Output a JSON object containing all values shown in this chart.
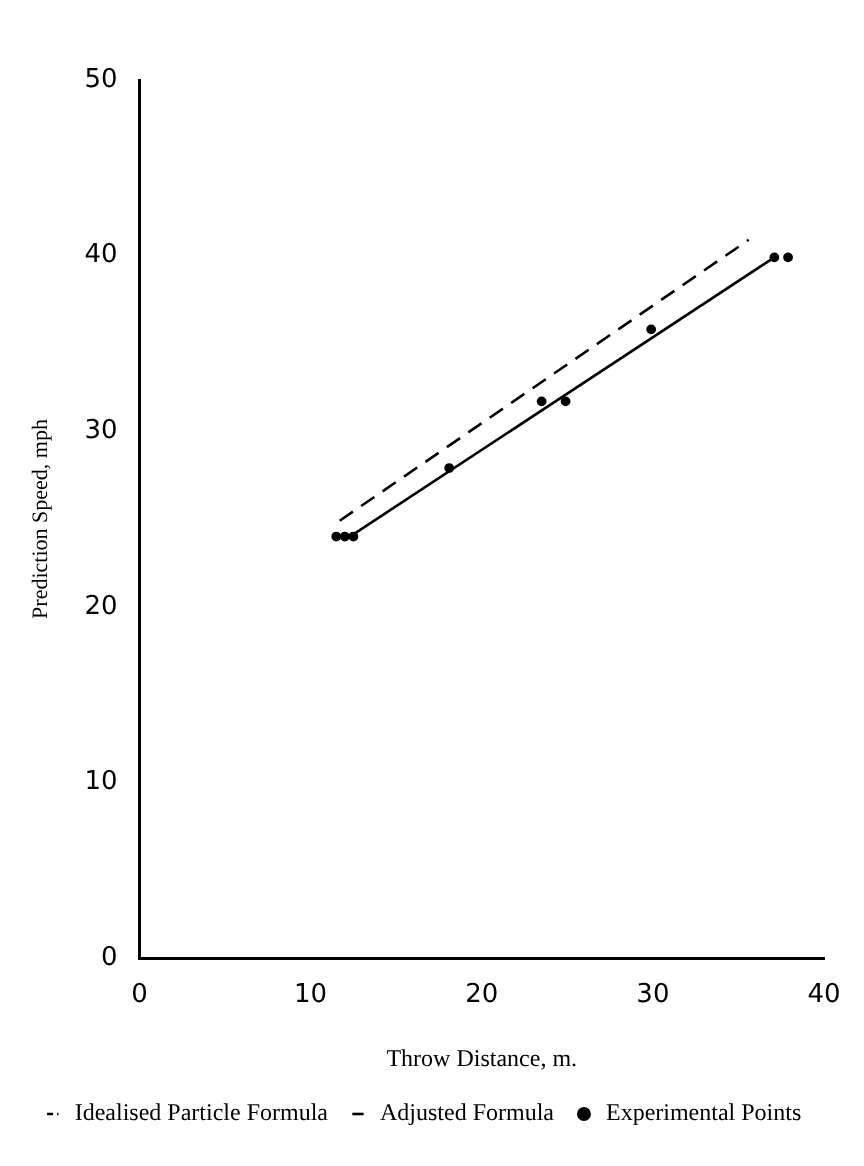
{
  "chart_data": {
    "type": "line",
    "xlabel": "Throw Distance, m.",
    "ylabel": "Prediction Speed, mph",
    "xlim": [
      0,
      40
    ],
    "ylim": [
      0,
      50
    ],
    "xticks": [
      0,
      10,
      20,
      30,
      40
    ],
    "yticks": [
      0,
      10,
      20,
      30,
      40,
      50
    ],
    "grid": false,
    "legend": "bottom",
    "series": [
      {
        "name": "Idealised Particle Formula",
        "color": "#000000",
        "line_style": "dashed",
        "marker": "none",
        "x": [
          11.7,
          35.6
        ],
        "values": [
          24.9,
          40.9
        ]
      },
      {
        "name": "Adjusted Formula",
        "color": "#000000",
        "line_style": "solid",
        "marker": "none",
        "x": [
          12.3,
          37.1
        ],
        "values": [
          24.0,
          39.9
        ]
      },
      {
        "name": "Experimental Points",
        "type": "scatter",
        "color": "#000000",
        "marker": "circle",
        "x": [
          11.5,
          12,
          12.5,
          18.1,
          23.5,
          24.9,
          29.9,
          37.1,
          37.9
        ],
        "values": [
          24,
          24,
          24,
          27.9,
          31.7,
          31.7,
          35.8,
          39.9,
          39.9
        ]
      }
    ]
  }
}
